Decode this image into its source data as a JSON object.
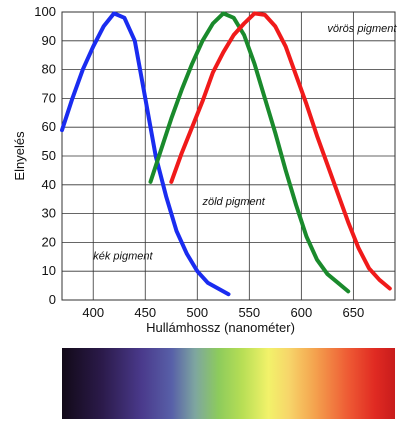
{
  "chart_data": {
    "type": "line",
    "xlabel": "Hullámhossz (nanométer)",
    "ylabel": "Elnyelés",
    "xlim": [
      370,
      690
    ],
    "ylim": [
      0,
      100
    ],
    "x_ticks": [
      400,
      450,
      500,
      550,
      600,
      650
    ],
    "y_ticks": [
      0,
      10,
      20,
      30,
      40,
      50,
      60,
      70,
      80,
      90,
      100
    ],
    "grid": true,
    "series": [
      {
        "name": "kék pigment",
        "color": "#1a2cf0",
        "points": [
          [
            370,
            59
          ],
          [
            380,
            70
          ],
          [
            390,
            80
          ],
          [
            400,
            88
          ],
          [
            410,
            95
          ],
          [
            420,
            99.5
          ],
          [
            430,
            98
          ],
          [
            440,
            90
          ],
          [
            450,
            70
          ],
          [
            460,
            50
          ],
          [
            470,
            36
          ],
          [
            480,
            24
          ],
          [
            490,
            16
          ],
          [
            500,
            10
          ],
          [
            510,
            6
          ],
          [
            520,
            4
          ],
          [
            530,
            2
          ]
        ]
      },
      {
        "name": "zöld pigment",
        "color": "#1a8a2c",
        "points": [
          [
            455,
            41
          ],
          [
            465,
            52
          ],
          [
            475,
            63
          ],
          [
            485,
            73
          ],
          [
            495,
            82
          ],
          [
            505,
            90
          ],
          [
            515,
            96
          ],
          [
            525,
            99.5
          ],
          [
            535,
            98
          ],
          [
            545,
            92
          ],
          [
            555,
            82
          ],
          [
            565,
            70
          ],
          [
            575,
            58
          ],
          [
            585,
            45
          ],
          [
            595,
            33
          ],
          [
            605,
            22
          ],
          [
            615,
            14
          ],
          [
            625,
            9
          ],
          [
            635,
            6
          ],
          [
            645,
            3
          ]
        ]
      },
      {
        "name": "vörös pigment",
        "color": "#f01a1a",
        "points": [
          [
            475,
            41
          ],
          [
            485,
            51
          ],
          [
            495,
            60
          ],
          [
            505,
            69
          ],
          [
            515,
            79
          ],
          [
            525,
            86
          ],
          [
            535,
            92
          ],
          [
            545,
            96
          ],
          [
            555,
            99.5
          ],
          [
            565,
            99
          ],
          [
            575,
            95
          ],
          [
            585,
            88
          ],
          [
            595,
            78
          ],
          [
            605,
            68
          ],
          [
            615,
            57
          ],
          [
            625,
            47
          ],
          [
            635,
            37
          ],
          [
            645,
            27
          ],
          [
            655,
            18
          ],
          [
            665,
            11
          ],
          [
            675,
            7
          ],
          [
            685,
            4
          ]
        ]
      }
    ],
    "annotations": [
      {
        "text": "vörös pigment",
        "x": 625,
        "y": 93
      },
      {
        "text": "zöld pigment",
        "x": 505,
        "y": 33
      },
      {
        "text": "kék pigment",
        "x": 400,
        "y": 14
      }
    ]
  }
}
